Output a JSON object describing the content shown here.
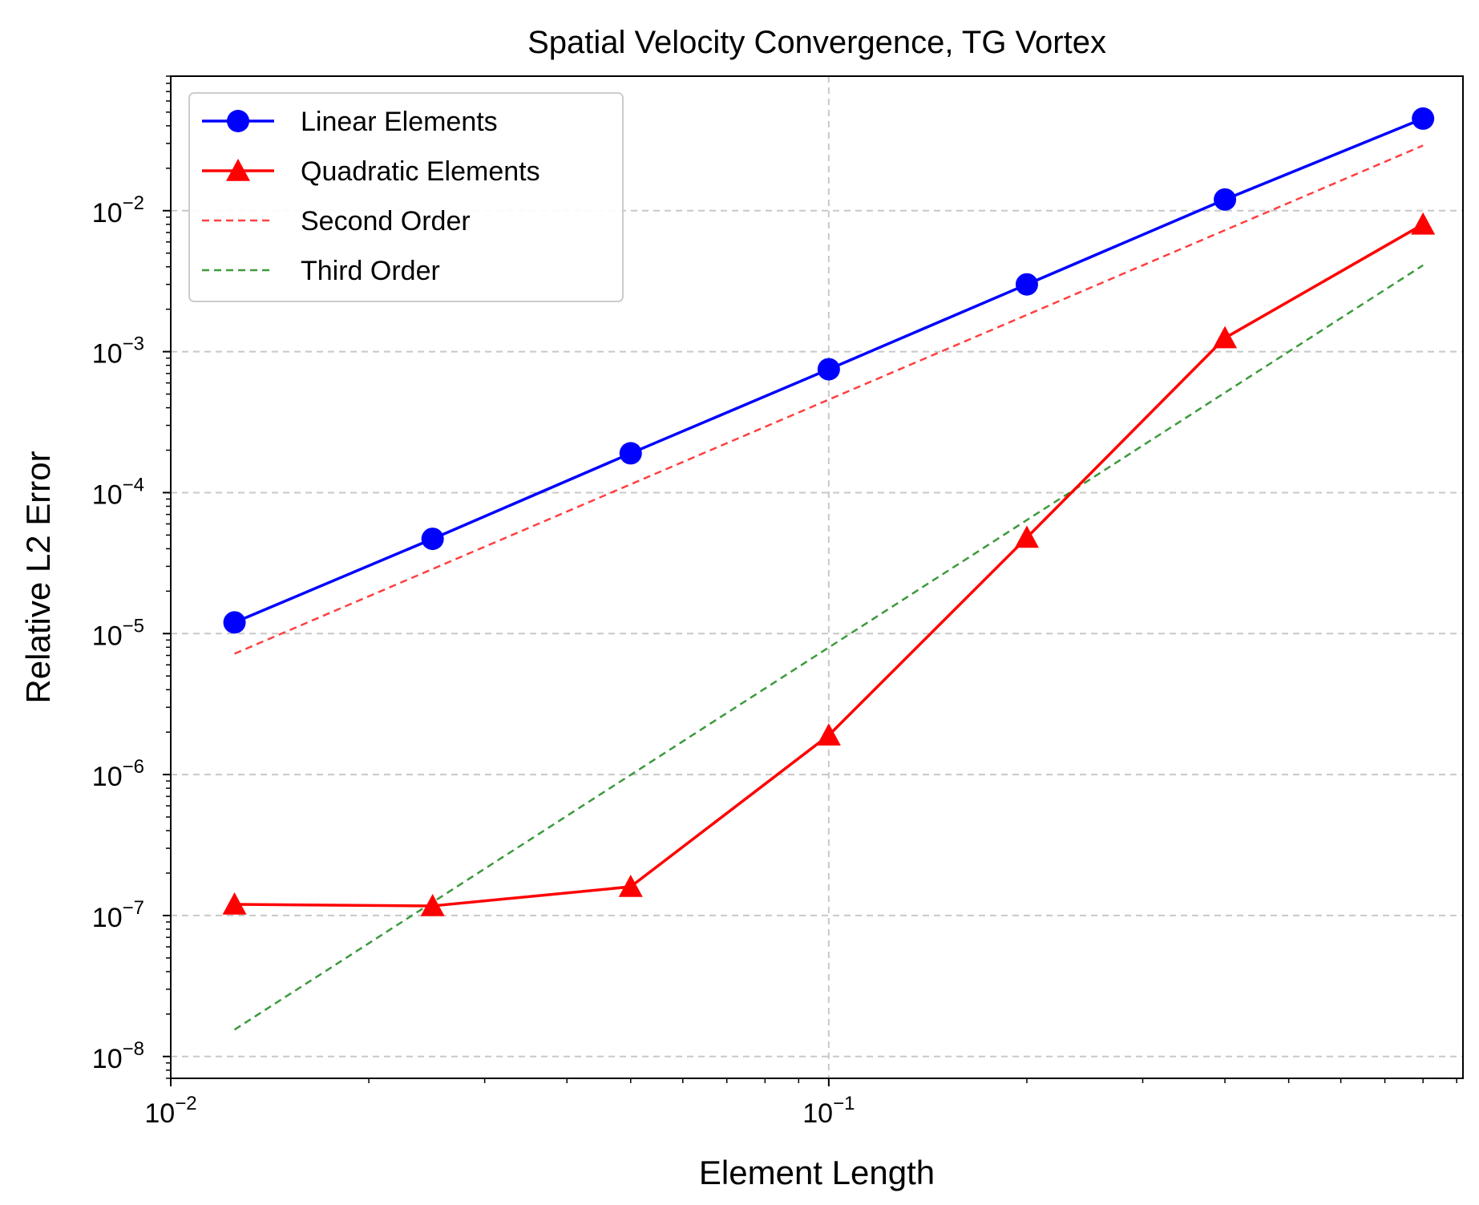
{
  "chart_data": {
    "type": "line",
    "title": "Spatial Velocity Convergence, TG Vortex",
    "xlabel": "Element Length",
    "ylabel": "Relative L2 Error",
    "xscale": "log",
    "yscale": "log",
    "xlim": [
      0.01,
      0.92
    ],
    "ylim": [
      7e-09,
      0.09
    ],
    "grid": "dashed",
    "legend": "top-left",
    "x_ticks": [
      {
        "value": 0.01,
        "base": "10",
        "exp": "−2"
      },
      {
        "value": 0.1,
        "base": "10",
        "exp": "−1"
      }
    ],
    "y_ticks": [
      {
        "value": 1e-08,
        "base": "10",
        "exp": "−8"
      },
      {
        "value": 1e-07,
        "base": "10",
        "exp": "−7"
      },
      {
        "value": 1e-06,
        "base": "10",
        "exp": "−6"
      },
      {
        "value": 1e-05,
        "base": "10",
        "exp": "−5"
      },
      {
        "value": 0.0001,
        "base": "10",
        "exp": "−4"
      },
      {
        "value": 0.001,
        "base": "10",
        "exp": "−3"
      },
      {
        "value": 0.01,
        "base": "10",
        "exp": "−2"
      }
    ],
    "series": [
      {
        "name": "Linear Elements",
        "color": "#0000ff",
        "style": "solid",
        "marker": "circle",
        "x": [
          0.0125,
          0.025,
          0.05,
          0.1,
          0.2,
          0.4,
          0.8
        ],
        "y": [
          1.2e-05,
          4.7e-05,
          0.00019,
          0.00075,
          0.003,
          0.012,
          0.045
        ]
      },
      {
        "name": "Quadratic Elements",
        "color": "#ff0000",
        "style": "solid",
        "marker": "triangle",
        "x": [
          0.0125,
          0.025,
          0.05,
          0.1,
          0.2,
          0.4,
          0.8
        ],
        "y": [
          1.2e-07,
          1.17e-07,
          1.6e-07,
          1.9e-06,
          4.8e-05,
          0.00125,
          0.008
        ]
      },
      {
        "name": "Second Order",
        "color": "#ff4040",
        "style": "dashed",
        "marker": "none",
        "x": [
          0.0125,
          0.8
        ],
        "y": [
          7.2e-06,
          0.029
        ]
      },
      {
        "name": "Third Order",
        "color": "#3c9a3c",
        "style": "dashed",
        "marker": "none",
        "x": [
          0.0125,
          0.8
        ],
        "y": [
          1.55e-08,
          0.0041
        ]
      }
    ]
  }
}
